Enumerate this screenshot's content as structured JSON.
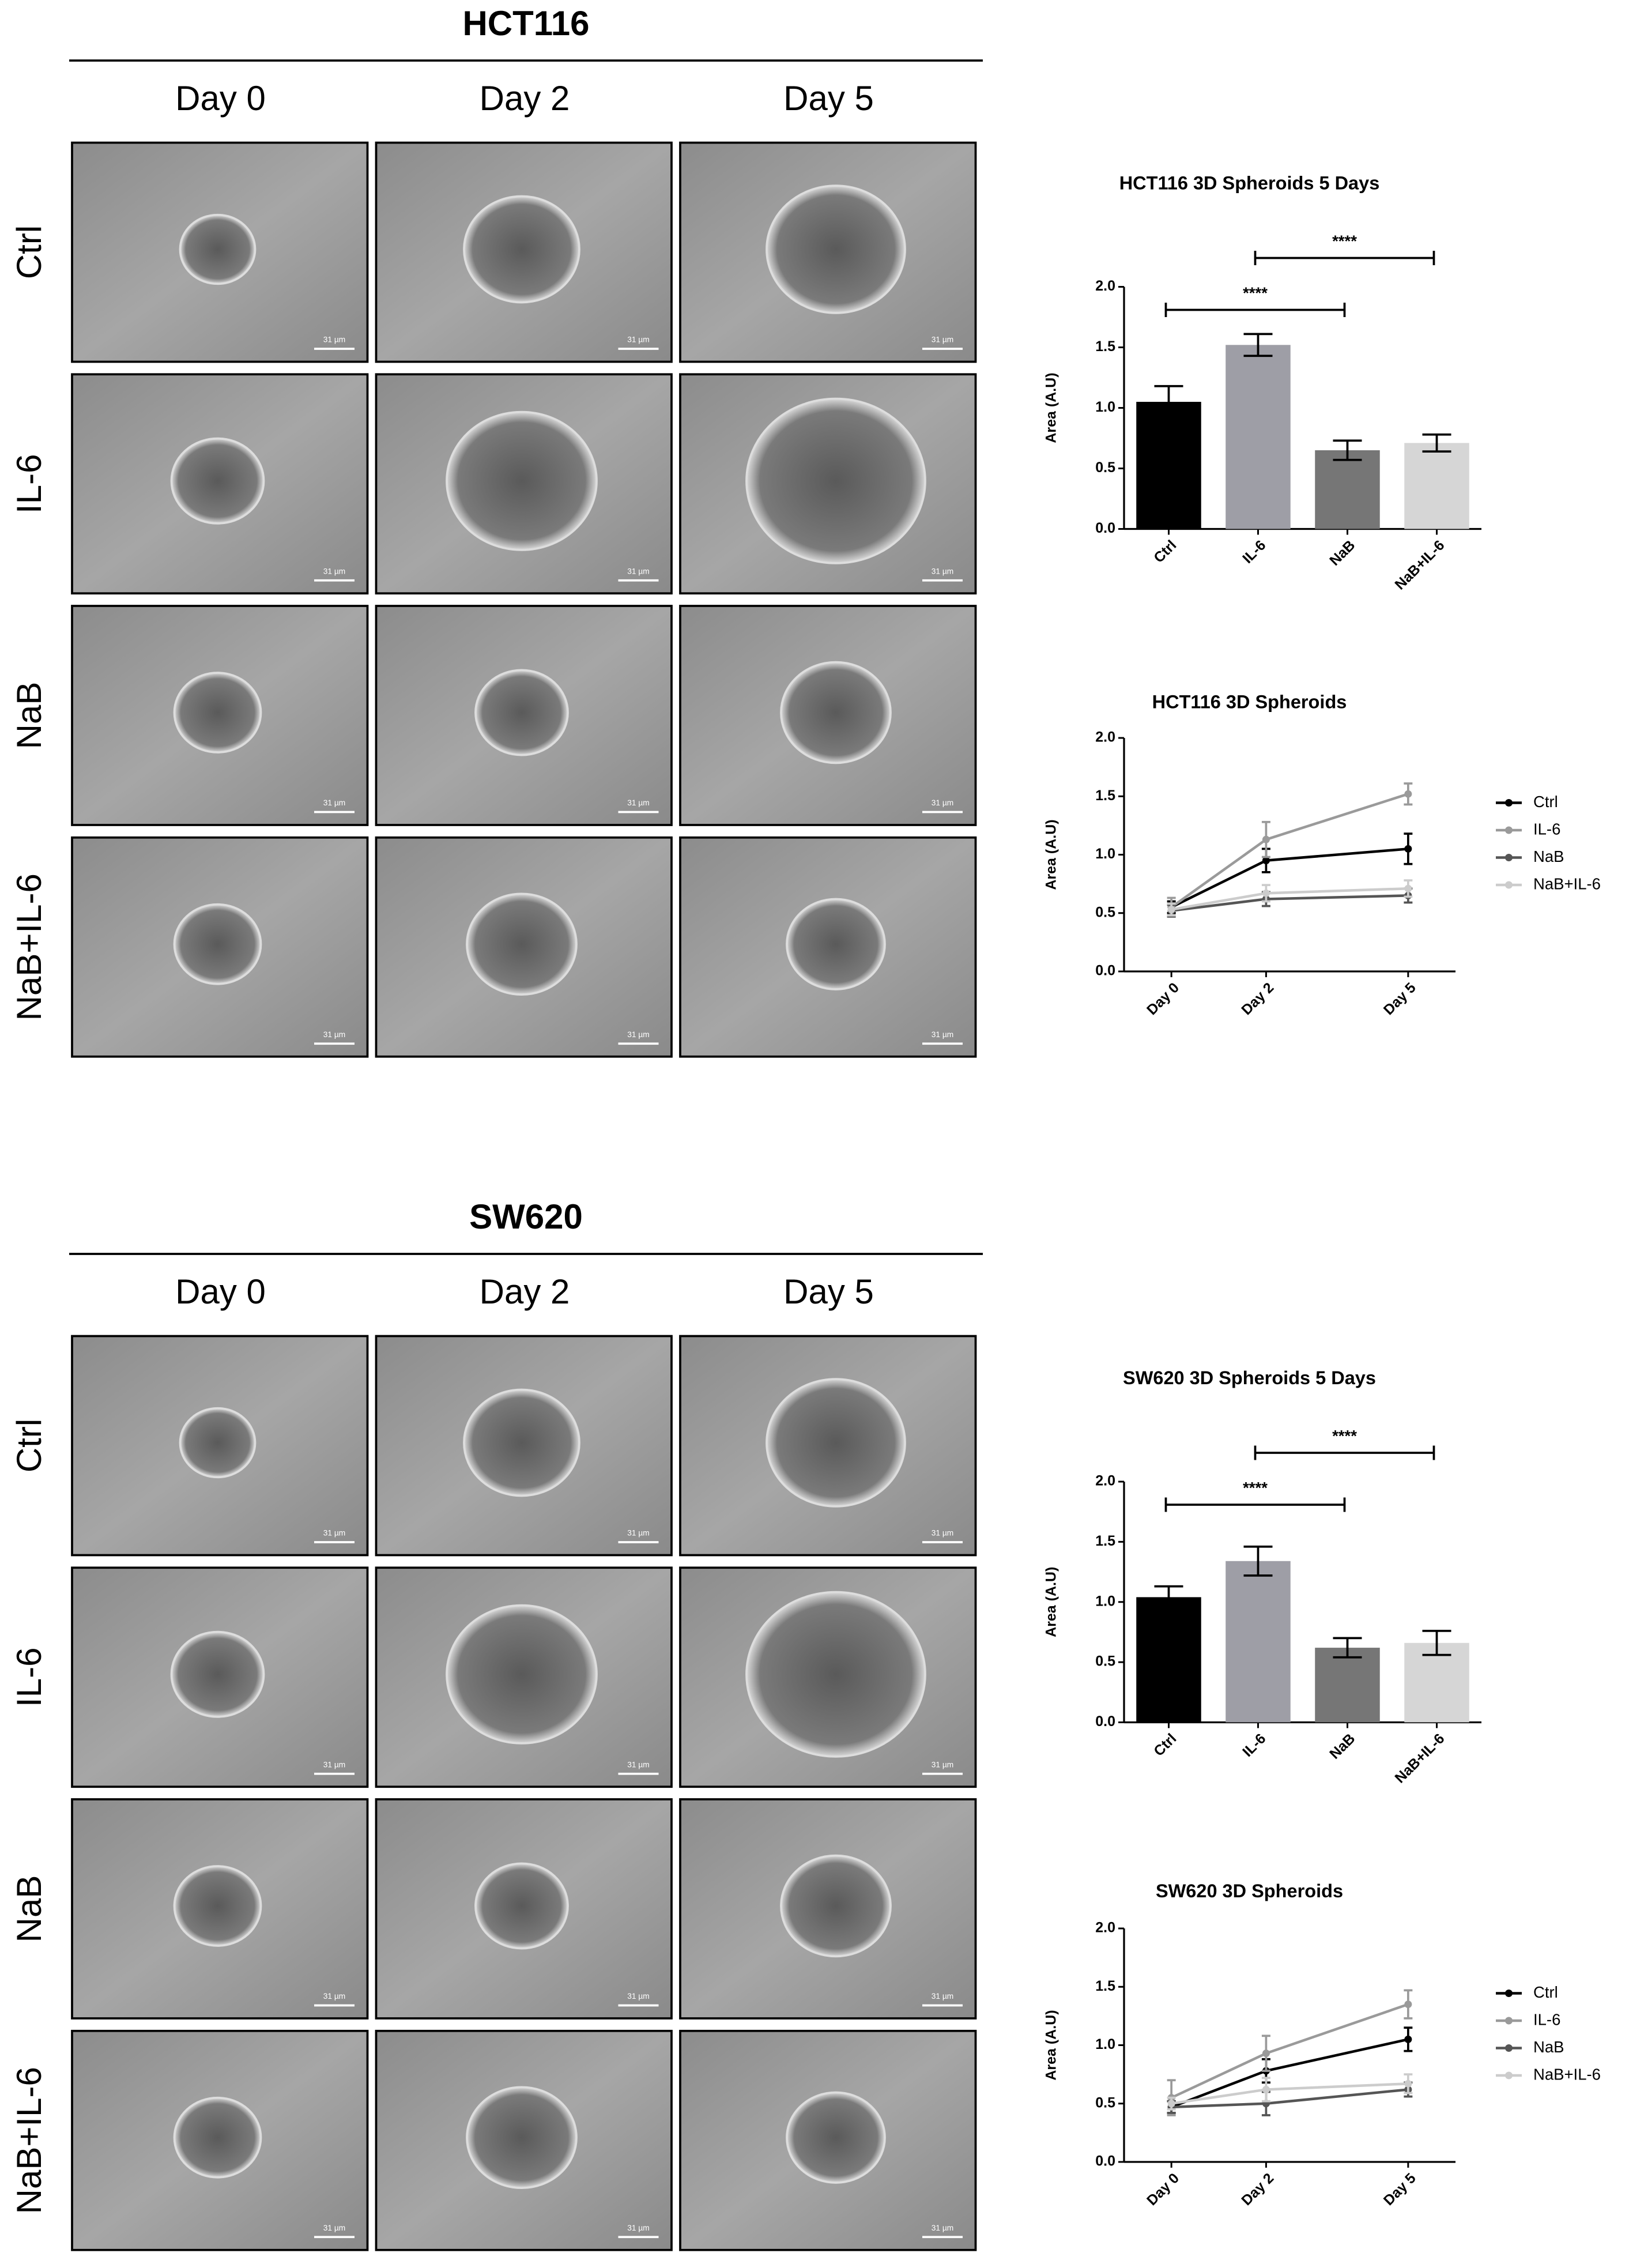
{
  "panels": [
    {
      "title": "HCT116",
      "columns": [
        "Day 0",
        "Day 2",
        "Day 5"
      ],
      "rows": [
        "Ctrl",
        "IL-6",
        "NaB",
        "NaB+IL-6"
      ],
      "scale_bar": "31 µm"
    },
    {
      "title": "SW620",
      "columns": [
        "Day 0",
        "Day 2",
        "Day 5"
      ],
      "rows": [
        "Ctrl",
        "IL-6",
        "NaB",
        "NaB+IL-6"
      ],
      "scale_bar": "31 µm"
    }
  ],
  "chart_data": [
    {
      "type": "bar",
      "title": "HCT116 3D Spheroids 5 Days",
      "y_label": "Area (A.U)",
      "categories": [
        "Ctrl",
        "IL-6",
        "NaB",
        "NaB+IL-6"
      ],
      "values": [
        1.05,
        1.52,
        0.65,
        0.71
      ],
      "errors": [
        0.13,
        0.09,
        0.08,
        0.07
      ],
      "colors": [
        "#000000",
        "#9e9ea6",
        "#767676",
        "#d6d6d6"
      ],
      "ylim": [
        0,
        2
      ],
      "yticks": [
        {
          "value": 0,
          "label": "0.0"
        },
        0.5,
        {
          "value": 1,
          "label": "1.0"
        },
        1.5,
        {
          "value": 2,
          "label": "2.0"
        }
      ],
      "annotations": [
        {
          "text": "****",
          "from": "Ctrl",
          "to": "NaB"
        },
        {
          "text": "****",
          "from": "IL-6",
          "to": "NaB+IL-6"
        }
      ]
    },
    {
      "type": "line",
      "title": "HCT116 3D Spheroids",
      "y_label": "Area (A.U)",
      "x": [
        0,
        2,
        5
      ],
      "xlim": [
        -1,
        6
      ],
      "xticks": [
        {
          "value": 0,
          "label": "Day 0"
        },
        {
          "value": 2,
          "label": "Day 2"
        },
        {
          "value": 5,
          "label": "Day 5"
        }
      ],
      "series": [
        {
          "name": "Ctrl",
          "color": "#000000",
          "values": [
            0.55,
            0.95,
            1.05
          ],
          "errors": [
            0.05,
            0.1,
            0.13
          ]
        },
        {
          "name": "IL-6",
          "color": "#9a9a9a",
          "values": [
            0.55,
            1.13,
            1.52
          ],
          "errors": [
            0.08,
            0.15,
            0.09
          ]
        },
        {
          "name": "NaB",
          "color": "#555555",
          "values": [
            0.52,
            0.62,
            0.65
          ],
          "errors": [
            0.05,
            0.06,
            0.06
          ]
        },
        {
          "name": "NaB+IL-6",
          "color": "#cccccc",
          "values": [
            0.53,
            0.67,
            0.71
          ],
          "errors": [
            0.05,
            0.07,
            0.07
          ]
        }
      ],
      "ylim": [
        0,
        2
      ],
      "yticks": [
        {
          "value": 0,
          "label": "0.0"
        },
        0.5,
        {
          "value": 1,
          "label": "1.0"
        },
        1.5,
        {
          "value": 2,
          "label": "2.0"
        }
      ]
    },
    {
      "type": "bar",
      "title": "SW620 3D Spheroids 5 Days",
      "y_label": "Area (A.U)",
      "categories": [
        "Ctrl",
        "IL-6",
        "NaB",
        "NaB+IL-6"
      ],
      "values": [
        1.04,
        1.34,
        0.62,
        0.66
      ],
      "errors": [
        0.09,
        0.12,
        0.08,
        0.1
      ],
      "colors": [
        "#000000",
        "#9e9ea6",
        "#767676",
        "#d6d6d6"
      ],
      "ylim": [
        0,
        2
      ],
      "yticks": [
        {
          "value": 0,
          "label": "0.0"
        },
        0.5,
        {
          "value": 1,
          "label": "1.0"
        },
        1.5,
        {
          "value": 2,
          "label": "2.0"
        }
      ],
      "annotations": [
        {
          "text": "****",
          "from": "Ctrl",
          "to": "NaB"
        },
        {
          "text": "****",
          "from": "IL-6",
          "to": "NaB+IL-6"
        }
      ]
    },
    {
      "type": "line",
      "title": "SW620 3D Spheroids",
      "y_label": "Area (A.U)",
      "x": [
        0,
        2,
        5
      ],
      "xlim": [
        -1,
        6
      ],
      "xticks": [
        {
          "value": 0,
          "label": "Day 0"
        },
        {
          "value": 2,
          "label": "Day 2"
        },
        {
          "value": 5,
          "label": "Day 5"
        }
      ],
      "series": [
        {
          "name": "Ctrl",
          "color": "#000000",
          "values": [
            0.47,
            0.78,
            1.05
          ],
          "errors": [
            0.05,
            0.1,
            0.1
          ]
        },
        {
          "name": "IL-6",
          "color": "#9a9a9a",
          "values": [
            0.55,
            0.93,
            1.35
          ],
          "errors": [
            0.15,
            0.15,
            0.12
          ]
        },
        {
          "name": "NaB",
          "color": "#555555",
          "values": [
            0.47,
            0.5,
            0.62
          ],
          "errors": [
            0.05,
            0.1,
            0.06
          ]
        },
        {
          "name": "NaB+IL-6",
          "color": "#cccccc",
          "values": [
            0.5,
            0.62,
            0.67
          ],
          "errors": [
            0.05,
            0.1,
            0.08
          ]
        }
      ],
      "ylim": [
        0,
        2
      ],
      "yticks": [
        {
          "value": 0,
          "label": "0.0"
        },
        0.5,
        {
          "value": 1,
          "label": "1.0"
        },
        1.5,
        {
          "value": 2,
          "label": "2.0"
        }
      ]
    }
  ]
}
